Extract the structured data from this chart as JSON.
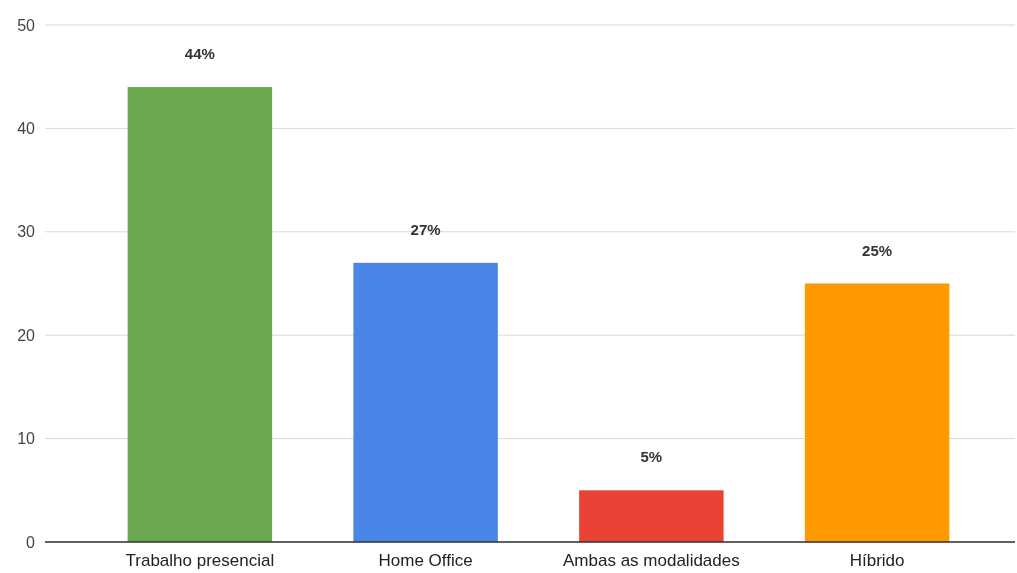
{
  "chart_data": {
    "type": "bar",
    "categories": [
      "Trabalho presencial",
      "Home Office",
      "Ambas as modalidades",
      "Híbrido"
    ],
    "values": [
      44,
      27,
      5,
      25
    ],
    "colors": [
      "#6aa84f",
      "#4a86e8",
      "#ea4335",
      "#ff9900"
    ],
    "value_labels": [
      "44%",
      "27%",
      "5%",
      "25%"
    ],
    "ylim": [
      0,
      50
    ],
    "yticks": [
      0,
      10,
      20,
      30,
      40,
      50
    ],
    "grid": "y"
  }
}
